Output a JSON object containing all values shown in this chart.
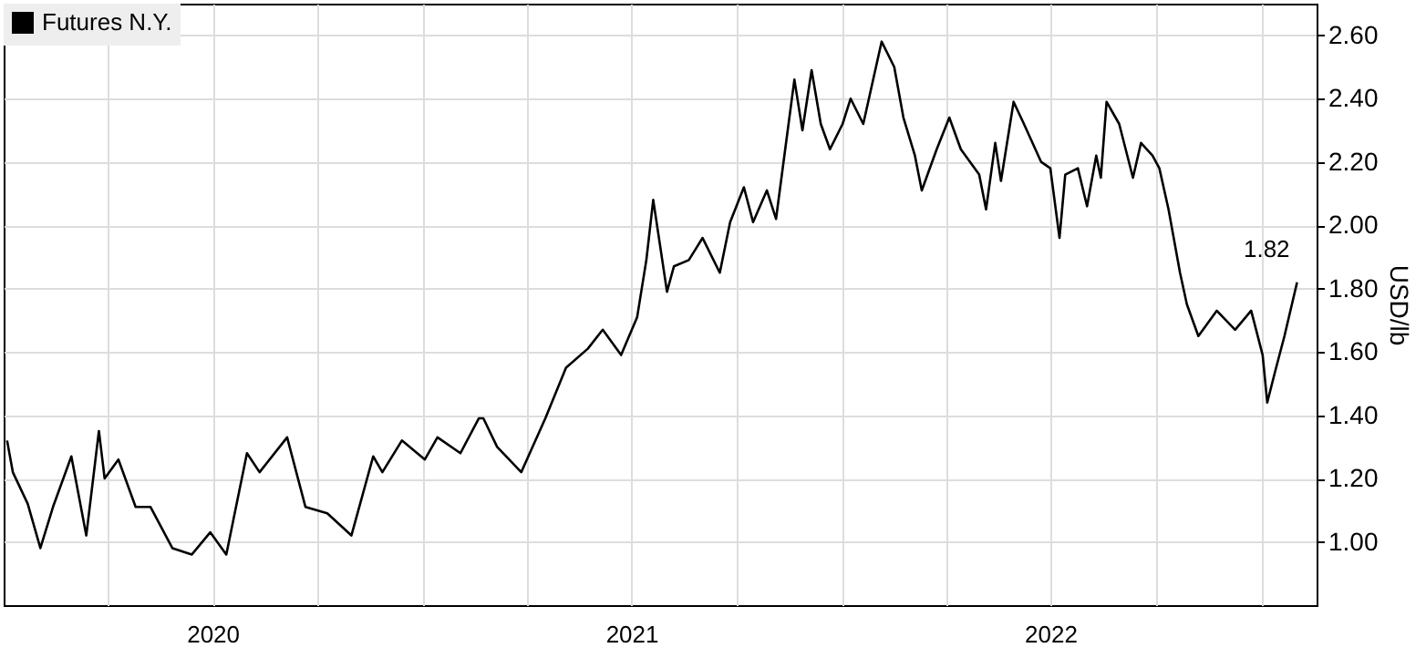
{
  "chart_data": {
    "type": "line",
    "ylabel": "USD/lb",
    "legend": "top left",
    "grid": true,
    "x": [
      "2020-01-04",
      "2020-01-09",
      "2020-01-22",
      "2020-02-02",
      "2020-02-13",
      "2020-02-29",
      "2020-03-13",
      "2020-03-24",
      "2020-03-29",
      "2020-04-10",
      "2020-04-25",
      "2020-05-08",
      "2020-05-27",
      "2020-06-13",
      "2020-06-29",
      "2020-07-13",
      "2020-07-31",
      "2020-08-11",
      "2020-09-04",
      "2020-09-20",
      "2020-10-09",
      "2020-10-30",
      "2020-11-18",
      "2020-11-26",
      "2020-12-13",
      "2021-01-02",
      "2021-01-13",
      "2021-02-02",
      "2021-02-18",
      "2021-02-22",
      "2021-03-06",
      "2021-03-27",
      "2021-04-17",
      "2021-05-05",
      "2021-05-24",
      "2021-06-06",
      "2021-06-22",
      "2021-07-06",
      "2021-07-14",
      "2021-07-20",
      "2021-08-01",
      "2021-08-07",
      "2021-08-20",
      "2021-09-01",
      "2021-09-16",
      "2021-09-25",
      "2021-10-07",
      "2021-10-15",
      "2021-10-27",
      "2021-11-04",
      "2021-11-12",
      "2021-11-20",
      "2021-11-27",
      "2021-12-05",
      "2021-12-13",
      "2021-12-21",
      "2022-01-01",
      "2022-01-08",
      "2022-01-19",
      "2022-02-04",
      "2022-02-15",
      "2022-02-23",
      "2022-03-05",
      "2022-03-11",
      "2022-03-24",
      "2022-04-04",
      "2022-04-14",
      "2022-04-30",
      "2022-05-06",
      "2022-05-14",
      "2022-05-19",
      "2022-05-30",
      "2022-06-08",
      "2022-06-23",
      "2022-07-01",
      "2022-07-09",
      "2022-07-14",
      "2022-07-25",
      "2022-08-02",
      "2022-08-10",
      "2022-08-14",
      "2022-08-19",
      "2022-08-30",
      "2022-09-11",
      "2022-09-18",
      "2022-09-28",
      "2022-10-04",
      "2022-10-12",
      "2022-10-22",
      "2022-10-28",
      "2022-11-07",
      "2022-11-23",
      "2022-12-09",
      "2022-12-23",
      "2023-01-02",
      "2023-01-06",
      "2023-01-13",
      "2023-01-21",
      "2023-02-01"
    ],
    "series": [
      {
        "name": "Futures N.Y.",
        "color": "#000000",
        "values": [
          1.32,
          1.22,
          1.12,
          0.98,
          1.11,
          1.27,
          1.02,
          1.35,
          1.2,
          1.26,
          1.11,
          1.11,
          0.98,
          0.96,
          1.03,
          0.96,
          1.28,
          1.22,
          1.33,
          1.11,
          1.09,
          1.02,
          1.27,
          1.22,
          1.32,
          1.26,
          1.33,
          1.28,
          1.39,
          1.39,
          1.3,
          1.22,
          1.39,
          1.55,
          1.61,
          1.67,
          1.59,
          1.71,
          1.89,
          2.08,
          1.79,
          1.87,
          1.89,
          1.96,
          1.85,
          2.01,
          2.12,
          2.01,
          2.11,
          2.02,
          2.24,
          2.46,
          2.3,
          2.49,
          2.32,
          2.24,
          2.32,
          2.4,
          2.32,
          2.58,
          2.5,
          2.34,
          2.22,
          2.11,
          2.24,
          2.34,
          2.24,
          2.16,
          2.05,
          2.26,
          2.14,
          2.39,
          2.32,
          2.2,
          2.18,
          1.96,
          2.16,
          2.18,
          2.06,
          2.22,
          2.15,
          2.39,
          2.32,
          2.15,
          2.26,
          2.22,
          2.18,
          2.05,
          1.85,
          1.75,
          1.65,
          1.73,
          1.67,
          1.73,
          1.59,
          1.44,
          1.54,
          1.65,
          1.82
        ]
      }
    ],
    "xlim": [
      "2020-01-01",
      "2023-02-18"
    ],
    "xticks": [
      {
        "value": "2020-04-01",
        "label": null
      },
      {
        "value": "2020-07-01",
        "label": "2020"
      },
      {
        "value": "2020-10-01",
        "label": null
      },
      {
        "value": "2021-01-01",
        "label": null
      },
      {
        "value": "2021-04-01",
        "label": null
      },
      {
        "value": "2021-07-01",
        "label": "2021"
      },
      {
        "value": "2021-10-01",
        "label": null
      },
      {
        "value": "2022-01-01",
        "label": null
      },
      {
        "value": "2022-04-01",
        "label": null
      },
      {
        "value": "2022-07-01",
        "label": "2022"
      },
      {
        "value": "2022-10-01",
        "label": null
      },
      {
        "value": "2023-01-01",
        "label": null
      }
    ],
    "ylim": [
      0.8,
      2.7
    ],
    "yticks": [
      {
        "value": 1,
        "label": "1.00"
      },
      {
        "value": 1.2,
        "label": "1.20"
      },
      {
        "value": 1.4,
        "label": "1.40"
      },
      {
        "value": 1.6,
        "label": "1.60"
      },
      {
        "value": 1.8,
        "label": "1.80"
      },
      {
        "value": 2,
        "label": "2.00"
      },
      {
        "value": 2.2,
        "label": "2.20"
      },
      {
        "value": 2.4,
        "label": "2.40"
      },
      {
        "value": 2.6,
        "label": "2.60"
      }
    ],
    "annotations": [
      {
        "text": "1.82",
        "x": "2023-02-01",
        "y": 1.82
      }
    ]
  }
}
